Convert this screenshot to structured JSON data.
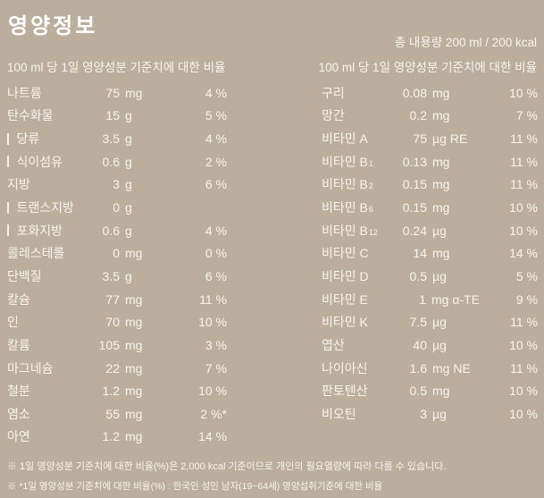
{
  "page": {
    "background_color": "#bcae9d",
    "text_color": "#f8f5ee"
  },
  "header": {
    "title": "영양정보",
    "total_amount": "총 내용량 200 ml /  200 kcal"
  },
  "nutrition_left": {
    "note": "100 ml 당 1일 영양성분 기준치에 대한 비율",
    "rows": [
      {
        "label": "나트륨",
        "indent": false,
        "amount": "75",
        "unit": "mg",
        "percent": "4 %"
      },
      {
        "label": "탄수화물",
        "indent": false,
        "amount": "15",
        "unit": "g",
        "percent": "5 %"
      },
      {
        "label": "당류",
        "indent": true,
        "amount": "3.5",
        "unit": "g",
        "percent": "4 %"
      },
      {
        "label": "식이섬유",
        "indent": true,
        "amount": "0.6",
        "unit": "g",
        "percent": "2 %"
      },
      {
        "label": "지방",
        "indent": false,
        "amount": "3",
        "unit": "g",
        "percent": "6 %"
      },
      {
        "label": "트랜스지방",
        "indent": true,
        "amount": "0",
        "unit": "g",
        "percent": ""
      },
      {
        "label": "포화지방",
        "indent": true,
        "amount": "0.6",
        "unit": "g",
        "percent": "4 %"
      },
      {
        "label": "콜레스테롤",
        "indent": false,
        "amount": "0",
        "unit": "mg",
        "percent": "0 %"
      },
      {
        "label": "단백질",
        "indent": false,
        "amount": "3.5",
        "unit": "g",
        "percent": "6 %"
      },
      {
        "label": "칼슘",
        "indent": false,
        "amount": "77",
        "unit": "mg",
        "percent": "11 %"
      },
      {
        "label": "인",
        "indent": false,
        "amount": "70",
        "unit": "mg",
        "percent": "10 %"
      },
      {
        "label": "칼륨",
        "indent": false,
        "amount": "105",
        "unit": "mg",
        "percent": "3 %"
      },
      {
        "label": "마그네슘",
        "indent": false,
        "amount": "22",
        "unit": "mg",
        "percent": "7 %"
      },
      {
        "label": "철분",
        "indent": false,
        "amount": "1.2",
        "unit": "mg",
        "percent": "10 %"
      },
      {
        "label": "염소",
        "indent": false,
        "amount": "55",
        "unit": "mg",
        "percent": "2 %*"
      },
      {
        "label": "아연",
        "indent": false,
        "amount": "1.2",
        "unit": "mg",
        "percent": "14 %"
      }
    ]
  },
  "nutrition_right": {
    "note": "100 ml 당 1일 영양성분 기준치에 대한 비율",
    "rows": [
      {
        "label": "구리",
        "sub": "",
        "amount": "0.08",
        "unit": "mg",
        "percent": "10 %"
      },
      {
        "label": "망간",
        "sub": "",
        "amount": "0.2",
        "unit": "mg",
        "percent": "7 %"
      },
      {
        "label": "비타민 A",
        "sub": "",
        "amount": "75",
        "unit": "µg RE",
        "percent": "11 %"
      },
      {
        "label": "비타민 B",
        "sub": "1",
        "amount": "0.13",
        "unit": "mg",
        "percent": "11 %"
      },
      {
        "label": "비타민 B",
        "sub": "2",
        "amount": "0.15",
        "unit": "mg",
        "percent": "11 %"
      },
      {
        "label": "비타민 B",
        "sub": "6",
        "amount": "0.15",
        "unit": "mg",
        "percent": "10 %"
      },
      {
        "label": "비타민 B",
        "sub": "12",
        "amount": "0.24",
        "unit": "µg",
        "percent": "10 %"
      },
      {
        "label": "비타민 C",
        "sub": "",
        "amount": "14",
        "unit": "mg",
        "percent": "14 %"
      },
      {
        "label": "비타민 D",
        "sub": "",
        "amount": "0.5",
        "unit": "µg",
        "percent": "5 %"
      },
      {
        "label": "비타민 E",
        "sub": "",
        "amount": "1",
        "unit": "mg α-TE",
        "percent": "9 %"
      },
      {
        "label": "비타민 K",
        "sub": "",
        "amount": "7.5",
        "unit": "µg",
        "percent": "11 %"
      },
      {
        "label": "엽산",
        "sub": "",
        "amount": "40",
        "unit": "µg",
        "percent": "10 %"
      },
      {
        "label": "나이아신",
        "sub": "",
        "amount": "1.6",
        "unit": "mg NE",
        "percent": "11 %"
      },
      {
        "label": "판토텐산",
        "sub": "",
        "amount": "0.5",
        "unit": "mg",
        "percent": "10 %"
      },
      {
        "label": "비오틴",
        "sub": "",
        "amount": "3",
        "unit": "µg",
        "percent": "10 %"
      }
    ]
  },
  "footnotes": [
    "※ 1일 영양성분 기준치에 대한 비율(%)은 2,000 kcal 기준이므로 개인의 필요열량에 따라 다를 수 있습니다.",
    "※ *1일 영양성분 기준치에 대한 비율(%) : 한국인 성인 남자(19~64세) 영양섭취기준에 대한 비율"
  ]
}
